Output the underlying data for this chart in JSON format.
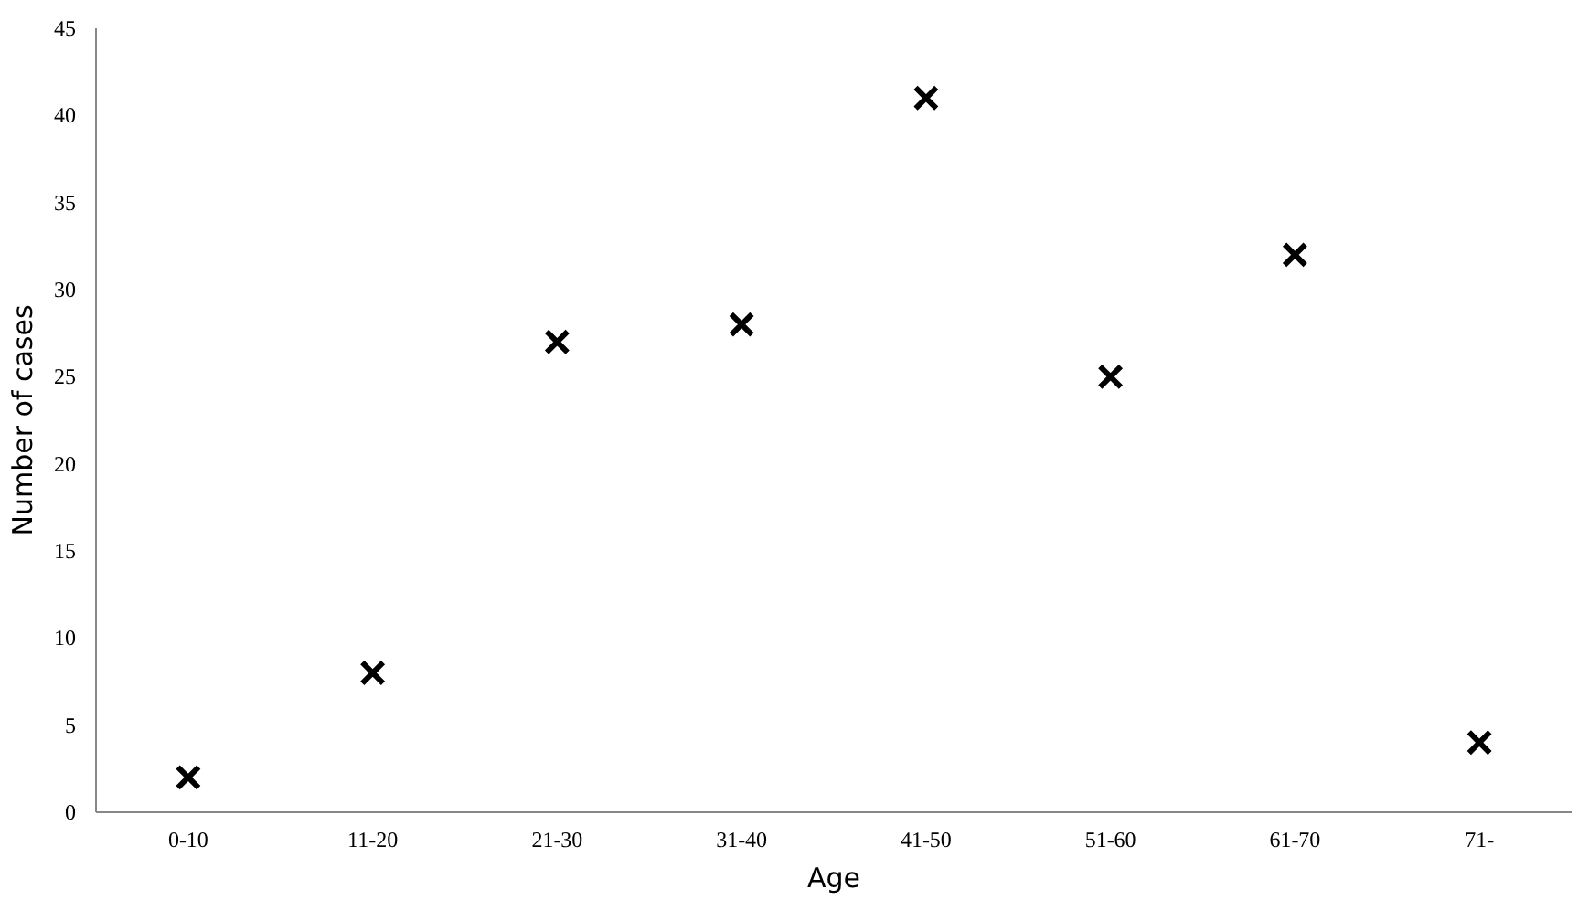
{
  "chart_data": {
    "type": "scatter",
    "xlabel": "Age",
    "ylabel": "Number of cases",
    "categories": [
      "0-10",
      "11-20",
      "21-30",
      "31-40",
      "41-50",
      "51-60",
      "61-70",
      "71-"
    ],
    "series": [
      {
        "color": "#000000",
        "values": [
          2,
          8,
          27,
          28,
          41,
          25,
          32,
          4
        ]
      }
    ],
    "ylim": [
      0,
      45
    ],
    "yticks": [
      0,
      5,
      10,
      15,
      20,
      25,
      30,
      35,
      40,
      45
    ],
    "marker": "cross"
  }
}
